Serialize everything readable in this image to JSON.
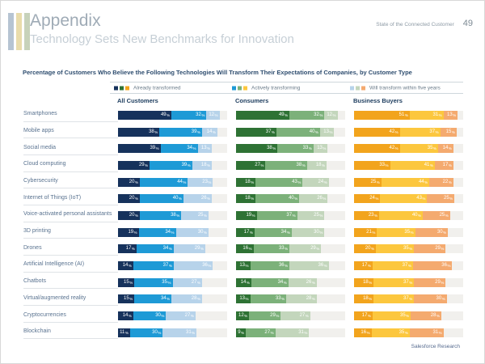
{
  "header": {
    "title": "Appendix",
    "subtitle": "Technology Sets New Benchmarks for Innovation",
    "report_name": "State of the Connected Customer",
    "page_number": "49"
  },
  "footer": {
    "credit": "Salesforce Research"
  },
  "accent_stripe_colors": [
    "#b6c4d2",
    "#e9dcab",
    "#c7d2ba"
  ],
  "chart_data": {
    "type": "bar",
    "variant": "horizontal-stacked",
    "title": "Percentage of Customers Who Believe the Following Technologies Will Transform Their Expectations of Companies, by Customer Type",
    "unit": "%",
    "xlim": [
      0,
      100
    ],
    "grid": false,
    "legend_position": "top",
    "legend": [
      "Already transformed",
      "Actively transforming",
      "Will transform within five years"
    ],
    "track_color": "#f1f0ed",
    "categories": [
      "Smartphones",
      "Mobile apps",
      "Social media",
      "Cloud computing",
      "Cybersecurity",
      "Internet of Things (IoT)",
      "Voice-activated personal assistants",
      "3D printing",
      "Drones",
      "Artificial Intelligence (AI)",
      "Chatbots",
      "Virtual/augmented reality",
      "Cryptocurrencies",
      "Blockchain"
    ],
    "groups": [
      {
        "name": "All Customers",
        "colors": [
          "#16325c",
          "#1e9ad6",
          "#b7d3ea"
        ],
        "values": [
          [
            49,
            32,
            12
          ],
          [
            38,
            39,
            14
          ],
          [
            39,
            34,
            13
          ],
          [
            29,
            39,
            18
          ],
          [
            20,
            44,
            23
          ],
          [
            20,
            40,
            26
          ],
          [
            20,
            38,
            25
          ],
          [
            19,
            34,
            30
          ],
          [
            17,
            34,
            29
          ],
          [
            14,
            37,
            36
          ],
          [
            15,
            35,
            27
          ],
          [
            15,
            34,
            28
          ],
          [
            14,
            30,
            27
          ],
          [
            11,
            30,
            31
          ]
        ]
      },
      {
        "name": "Consumers",
        "colors": [
          "#2e7234",
          "#7cb17a",
          "#c3d6bc"
        ],
        "values": [
          [
            49,
            32,
            12
          ],
          [
            37,
            40,
            13
          ],
          [
            38,
            33,
            13
          ],
          [
            27,
            38,
            18
          ],
          [
            18,
            43,
            24
          ],
          [
            18,
            40,
            26
          ],
          [
            19,
            37,
            25
          ],
          [
            17,
            34,
            30
          ],
          [
            16,
            33,
            29
          ],
          [
            13,
            36,
            36
          ],
          [
            14,
            34,
            26
          ],
          [
            13,
            33,
            28
          ],
          [
            12,
            29,
            27
          ],
          [
            9,
            27,
            31
          ]
        ]
      },
      {
        "name": "Business Buyers",
        "colors": [
          "#f2a41d",
          "#fcc73e",
          "#f4aa6f"
        ],
        "values": [
          [
            51,
            31,
            13
          ],
          [
            42,
            37,
            15
          ],
          [
            42,
            35,
            14
          ],
          [
            33,
            41,
            17
          ],
          [
            25,
            44,
            22
          ],
          [
            24,
            43,
            25
          ],
          [
            23,
            40,
            25
          ],
          [
            21,
            35,
            30
          ],
          [
            20,
            35,
            29
          ],
          [
            17,
            37,
            36
          ],
          [
            18,
            37,
            29
          ],
          [
            18,
            37,
            30
          ],
          [
            17,
            35,
            28
          ],
          [
            16,
            35,
            31
          ]
        ]
      }
    ]
  }
}
